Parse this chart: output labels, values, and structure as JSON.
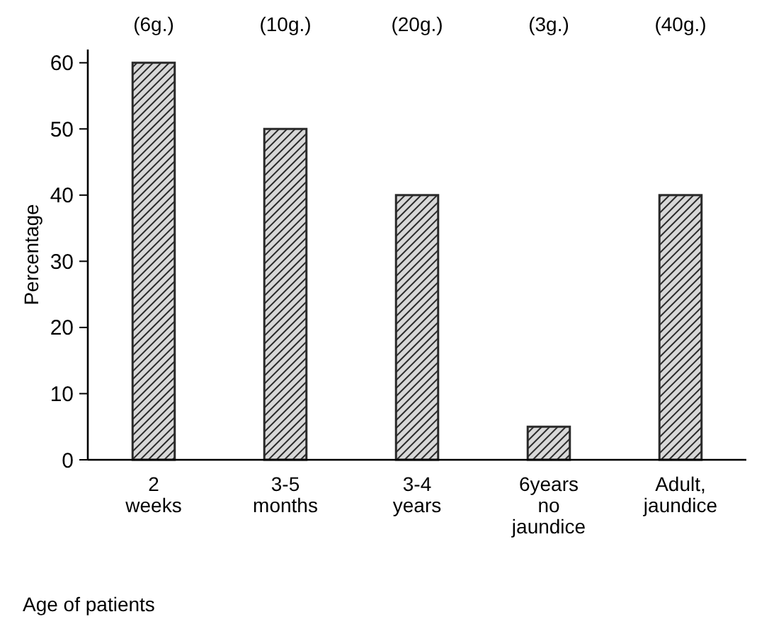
{
  "chart_data": {
    "type": "bar",
    "xlabel": "Age of patients",
    "ylabel": "Percentage",
    "categories": [
      "2\nweeks",
      "3-5\nmonths",
      "3-4\nyears",
      "6years\nno\njaundice",
      "Adult,\njaundice"
    ],
    "values": [
      60,
      50,
      40,
      5,
      40
    ],
    "color": "#2a2a2a",
    "ylim": [
      0,
      62
    ],
    "yticks": [
      0,
      10,
      20,
      30,
      40,
      50,
      60
    ],
    "annotations": [
      "(6g.)",
      "(10g.)",
      "(20g.)",
      "(3g.)",
      "(40g.)"
    ]
  }
}
